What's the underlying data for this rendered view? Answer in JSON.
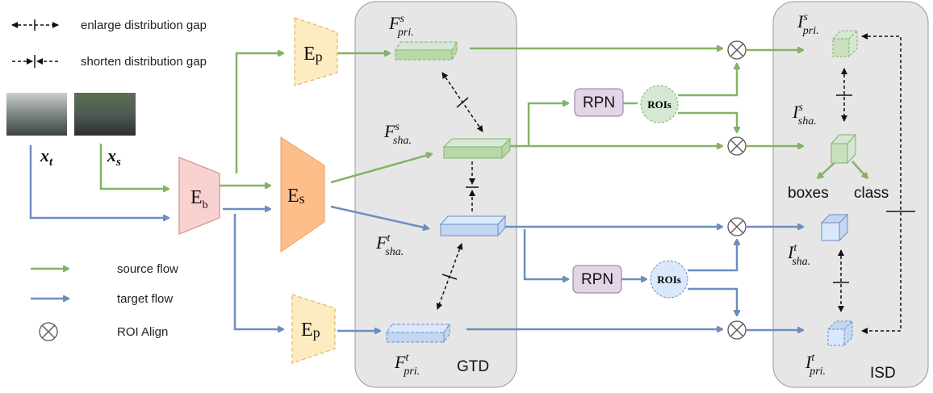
{
  "legend": {
    "enlarge": "enlarge distribution gap",
    "shorten": "shorten distribution gap",
    "source": "source flow",
    "target": "target flow",
    "roi_align": "ROI Align"
  },
  "inputs": {
    "target": {
      "symbol": "x",
      "sub": "t"
    },
    "source": {
      "symbol": "x",
      "sub": "s"
    }
  },
  "encoders": {
    "base": {
      "symbol": "E",
      "sub": "b"
    },
    "shared": {
      "symbol": "E",
      "sub": "s"
    },
    "private_top": {
      "symbol": "E",
      "sub": "p"
    },
    "private_bottom": {
      "symbol": "E",
      "sub": "p"
    }
  },
  "gtd": {
    "label": "GTD",
    "features": [
      {
        "symbol": "F",
        "sup": "s",
        "sub": "pri."
      },
      {
        "symbol": "F",
        "sup": "s",
        "sub": "sha."
      },
      {
        "symbol": "F",
        "sup": "t",
        "sub": "sha."
      },
      {
        "symbol": "F",
        "sup": "t",
        "sub": "pri."
      }
    ]
  },
  "rpn": [
    {
      "label": "RPN",
      "roi": "ROIs"
    },
    {
      "label": "RPN",
      "roi": "ROIs"
    }
  ],
  "isd": {
    "label": "ISD",
    "instances": [
      {
        "symbol": "I",
        "sup": "s",
        "sub": "pri."
      },
      {
        "symbol": "I",
        "sup": "s",
        "sub": "sha."
      },
      {
        "symbol": "I",
        "sup": "t",
        "sub": "sha."
      },
      {
        "symbol": "I",
        "sup": "t",
        "sub": "pri."
      }
    ],
    "outputs": [
      "boxes",
      "class"
    ]
  }
}
